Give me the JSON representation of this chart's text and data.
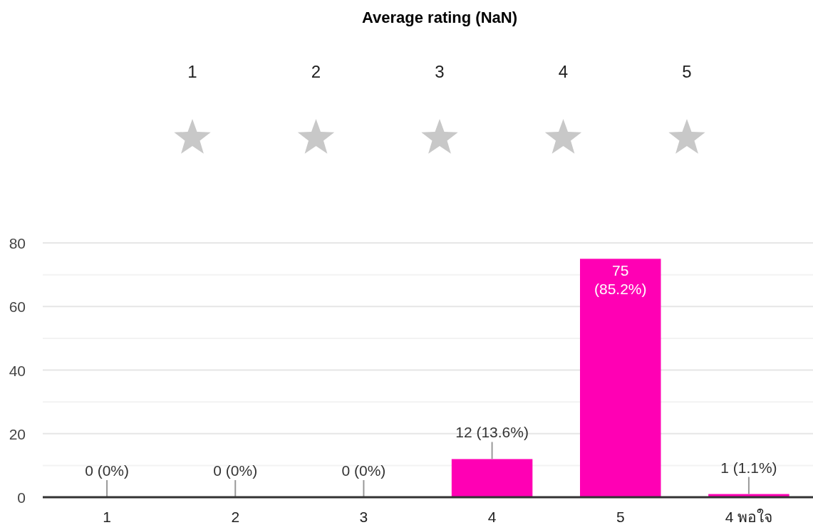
{
  "chart_data": {
    "type": "bar",
    "title": "Average rating (NaN)",
    "annotations": [
      "1",
      "2",
      "3",
      "4",
      "5"
    ],
    "categories": [
      "1",
      "2",
      "3",
      "4",
      "5",
      "4 พอใจ"
    ],
    "values": [
      0,
      0,
      0,
      12,
      75,
      1
    ],
    "value_labels": [
      "0 (0%)",
      "0 (0%)",
      "0 (0%)",
      "12 (13.6%)",
      "75\n(85.2%)",
      "1 (1.1%)"
    ],
    "color": "#ff00b4",
    "ylim": [
      0,
      80
    ],
    "yticks": [
      0,
      {
        "value": 10,
        "label": null
      },
      20,
      {
        "value": 30,
        "label": null
      },
      40,
      {
        "value": 50,
        "label": null
      },
      60,
      {
        "value": 70,
        "label": null
      },
      80
    ],
    "grid": true
  }
}
